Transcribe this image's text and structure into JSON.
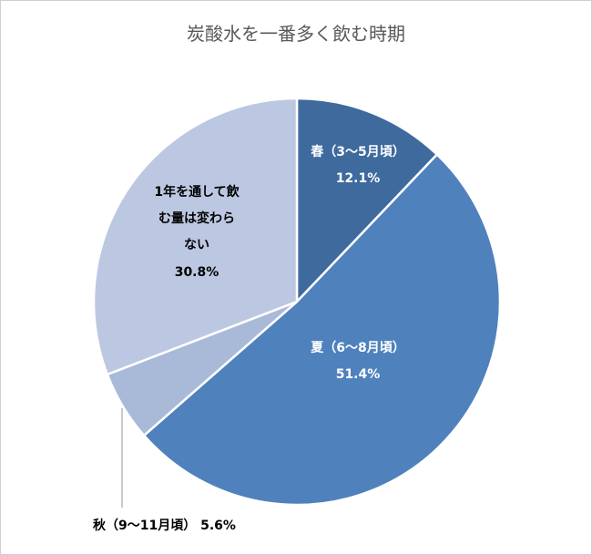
{
  "chart_data": {
    "type": "pie",
    "title": "炭酸水を一番多く飲む時期",
    "start": "top",
    "direction": "clockwise",
    "slices": [
      {
        "label": "春（3～5月頃）",
        "value": 12.1,
        "value_label": "12.1%",
        "color": "#3E6A9E",
        "label_lines": [
          "春（3～5月頃）"
        ],
        "text_color": "#ffffff"
      },
      {
        "label": "夏（6～8月頃）",
        "value": 51.4,
        "value_label": "51.4%",
        "color": "#4F81BD",
        "label_lines": [
          "夏（6～8月頃）"
        ],
        "text_color": "#ffffff"
      },
      {
        "label": "秋（9～11月頃）",
        "value": 5.6,
        "value_label": "5.6%",
        "color": "#A9B9D8",
        "label_lines": [
          "秋（9～11月頃）"
        ],
        "text_color": "#000000"
      },
      {
        "label": "1年を通して飲む量は変わらない",
        "value": 30.8,
        "value_label": "30.8%",
        "color": "#BCC8E2",
        "label_lines": [
          "1年を通して飲",
          "む量は変わら",
          "ない"
        ],
        "text_color": "#000000"
      }
    ]
  }
}
